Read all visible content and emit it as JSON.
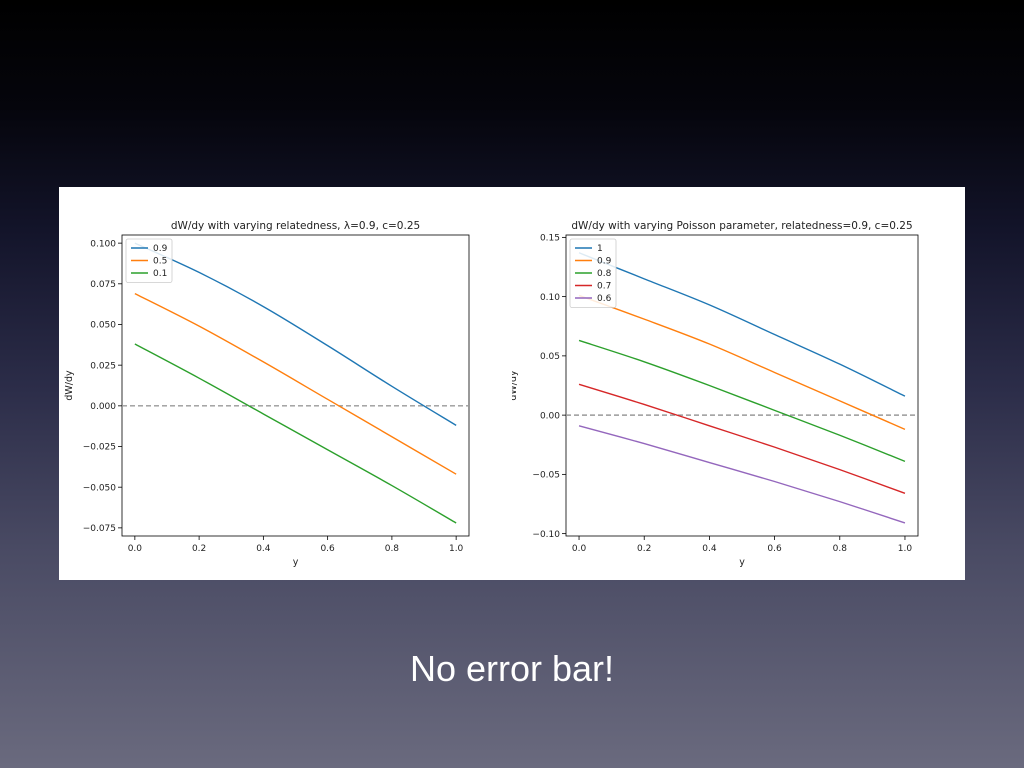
{
  "slide": {
    "caption": "No error bar!"
  },
  "chart_data": [
    {
      "type": "line",
      "title": "dW/dy with varying relatedness, λ=0.9, c=0.25",
      "xlabel": "y",
      "ylabel": "dW/dy",
      "xlim": [
        -0.04,
        1.04
      ],
      "ylim": [
        -0.08,
        0.105
      ],
      "xticks": [
        0.0,
        0.2,
        0.4,
        0.6,
        0.8,
        1.0
      ],
      "xtick_labels": [
        "0.0",
        "0.2",
        "0.4",
        "0.6",
        "0.8",
        "1.0"
      ],
      "yticks": [
        0.1,
        0.075,
        0.05,
        0.025,
        0.0,
        -0.025,
        -0.05,
        -0.075
      ],
      "ytick_labels": [
        "0.100",
        "0.075",
        "0.050",
        "0.025",
        "0.000",
        "−0.025",
        "−0.050",
        "−0.075"
      ],
      "grid": false,
      "legend_placement": "upper-left",
      "reference_line": {
        "y": 0.0,
        "style": "dashed",
        "color": "#999999"
      },
      "x": [
        0.0,
        0.2,
        0.4,
        0.6,
        0.8,
        1.0
      ],
      "series": [
        {
          "name": "0.9",
          "color": "#1f77b4",
          "values": [
            0.1,
            0.082,
            0.061,
            0.037,
            0.012,
            -0.012
          ]
        },
        {
          "name": "0.5",
          "color": "#ff7f0e",
          "values": [
            0.069,
            0.049,
            0.027,
            0.004,
            -0.019,
            -0.042
          ]
        },
        {
          "name": "0.1",
          "color": "#2ca02c",
          "values": [
            0.038,
            0.017,
            -0.005,
            -0.027,
            -0.049,
            -0.072
          ]
        }
      ]
    },
    {
      "type": "line",
      "title": "dW/dy with varying Poisson parameter, relatedness=0.9, c=0.25",
      "xlabel": "y",
      "ylabel": "dW/dy",
      "xlim": [
        -0.04,
        1.04
      ],
      "ylim": [
        -0.102,
        0.152
      ],
      "xticks": [
        0.0,
        0.2,
        0.4,
        0.6,
        0.8,
        1.0
      ],
      "xtick_labels": [
        "0.0",
        "0.2",
        "0.4",
        "0.6",
        "0.8",
        "1.0"
      ],
      "yticks": [
        0.15,
        0.1,
        0.05,
        0.0,
        -0.05,
        -0.1
      ],
      "ytick_labels": [
        "0.15",
        "0.10",
        "0.05",
        "0.00",
        "−0.05",
        "−0.10"
      ],
      "grid": false,
      "legend_placement": "upper-left",
      "reference_line": {
        "y": 0.0,
        "style": "dashed",
        "color": "#999999"
      },
      "x": [
        0.0,
        0.2,
        0.4,
        0.6,
        0.8,
        1.0
      ],
      "series": [
        {
          "name": "1",
          "color": "#1f77b4",
          "values": [
            0.137,
            0.115,
            0.093,
            0.068,
            0.043,
            0.016
          ]
        },
        {
          "name": "0.9",
          "color": "#ff7f0e",
          "values": [
            0.101,
            0.081,
            0.06,
            0.036,
            0.012,
            -0.012
          ]
        },
        {
          "name": "0.8",
          "color": "#2ca02c",
          "values": [
            0.063,
            0.045,
            0.025,
            0.004,
            -0.017,
            -0.039
          ]
        },
        {
          "name": "0.7",
          "color": "#d62728",
          "values": [
            0.026,
            0.009,
            -0.009,
            -0.027,
            -0.046,
            -0.066
          ]
        },
        {
          "name": "0.6",
          "color": "#9467bd",
          "values": [
            -0.009,
            -0.024,
            -0.04,
            -0.056,
            -0.073,
            -0.091
          ]
        }
      ]
    }
  ]
}
